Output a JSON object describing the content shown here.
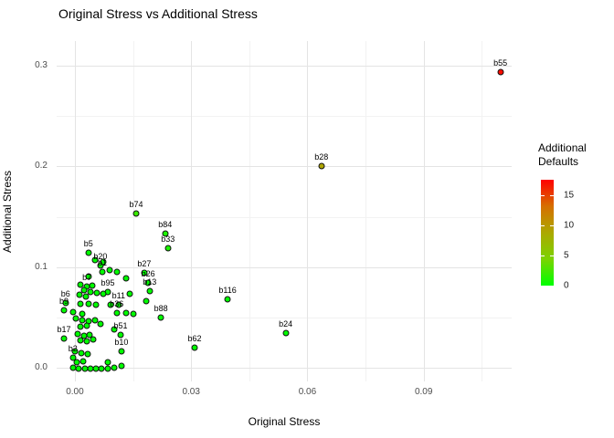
{
  "title": "Original Stress vs Additional Stress",
  "axes": {
    "x": {
      "label": "Original Stress",
      "ticks": [
        "0.00",
        "0.03",
        "0.06",
        "0.09"
      ],
      "tick_values": [
        0.0,
        0.03,
        0.06,
        0.09
      ],
      "minor_values": [
        0.015,
        0.045,
        0.075,
        0.105
      ],
      "range": [
        -0.0047,
        0.1127
      ]
    },
    "y": {
      "label": "Additional Stress",
      "ticks": [
        "0.0",
        "0.1",
        "0.2",
        "0.3"
      ],
      "tick_values": [
        0.0,
        0.1,
        0.2,
        0.3
      ],
      "minor_values": [
        0.05,
        0.15,
        0.25
      ],
      "range": [
        -0.0136,
        0.3247
      ]
    }
  },
  "legend": {
    "title": "Additional\nDefaults",
    "ticks": [
      0,
      5,
      10,
      15
    ],
    "scale_min": 0,
    "scale_max": 17.5,
    "gradient_stops": [
      "#00FF00",
      "#7CD300",
      "#ACA800",
      "#D66F00",
      "#FF0000"
    ]
  },
  "colors": {
    "point_stroke": "#111111",
    "grid_major": "#e4e4e4",
    "grid_minor": "#f2f2f2"
  },
  "chart_data": {
    "type": "scatter",
    "title": "Original Stress vs Additional Stress",
    "xlabel": "Original Stress",
    "ylabel": "Additional Stress",
    "xlim": [
      -0.005,
      0.113
    ],
    "ylim": [
      -0.014,
      0.325
    ],
    "legend_title": "Additional Defaults",
    "color_scale": {
      "low": "#00FF00",
      "high": "#FF0000",
      "domain": [
        0,
        17.5
      ]
    },
    "points": [
      {
        "label": "b55",
        "x": 0.1098,
        "y": 0.2937,
        "defaults": 17
      },
      {
        "label": "b28",
        "x": 0.0636,
        "y": 0.2004,
        "defaults": 9
      },
      {
        "label": "b74",
        "x": 0.0158,
        "y": 0.1532,
        "defaults": 2
      },
      {
        "label": "b84",
        "x": 0.0233,
        "y": 0.1333,
        "defaults": 1
      },
      {
        "label": "b33",
        "x": 0.024,
        "y": 0.1188,
        "defaults": 1
      },
      {
        "label": "b5",
        "x": 0.0035,
        "y": 0.1142,
        "defaults": 0
      },
      {
        "label": "b20",
        "x": 0.0066,
        "y": 0.1015,
        "defaults": 0
      },
      {
        "label": "b1",
        "x": 0.0071,
        "y": 0.0952,
        "defaults": 0
      },
      {
        "label": "b27",
        "x": 0.0179,
        "y": 0.0943,
        "defaults": 0
      },
      {
        "label": "b26",
        "x": 0.0189,
        "y": 0.0843,
        "defaults": 0
      },
      {
        "label": "b13",
        "x": 0.0193,
        "y": 0.0762,
        "defaults": 0
      },
      {
        "label": "b7",
        "x": 0.0031,
        "y": 0.0807,
        "defaults": 0
      },
      {
        "label": "b95",
        "x": 0.0085,
        "y": 0.0753,
        "defaults": 0
      },
      {
        "label": "b11",
        "x": 0.0113,
        "y": 0.0626,
        "defaults": 0
      },
      {
        "label": "b36",
        "x": 0.0108,
        "y": 0.0544,
        "defaults": 0
      },
      {
        "label": "b6",
        "x": -0.0024,
        "y": 0.0644,
        "defaults": 0
      },
      {
        "label": "b9",
        "x": -0.0028,
        "y": 0.0571,
        "defaults": 0
      },
      {
        "label": "b88",
        "x": 0.0222,
        "y": 0.0499,
        "defaults": 0
      },
      {
        "label": "b51",
        "x": 0.0118,
        "y": 0.0326,
        "defaults": 0
      },
      {
        "label": "b17",
        "x": -0.0028,
        "y": 0.029,
        "defaults": 0
      },
      {
        "label": "b10",
        "x": 0.012,
        "y": 0.0163,
        "defaults": 0
      },
      {
        "label": "b2",
        "x": -0.0005,
        "y": 0.01,
        "defaults": 0
      },
      {
        "label": "b62",
        "x": 0.0309,
        "y": 0.0199,
        "defaults": 0
      },
      {
        "label": "b116",
        "x": 0.0394,
        "y": 0.068,
        "defaults": 0
      },
      {
        "label": "b24",
        "x": 0.0544,
        "y": 0.0345,
        "defaults": 0
      },
      {
        "label": "",
        "x": 0.0052,
        "y": 0.107,
        "defaults": 0
      },
      {
        "label": "",
        "x": 0.0073,
        "y": 0.1052,
        "defaults": 0
      },
      {
        "label": "",
        "x": 0.009,
        "y": 0.097,
        "defaults": 0
      },
      {
        "label": "",
        "x": 0.0108,
        "y": 0.0952,
        "defaults": 0
      },
      {
        "label": "",
        "x": 0.0132,
        "y": 0.0888,
        "defaults": 0
      },
      {
        "label": "",
        "x": 0.0035,
        "y": 0.0907,
        "defaults": 0
      },
      {
        "label": "",
        "x": 0.0014,
        "y": 0.0825,
        "defaults": 0
      },
      {
        "label": "",
        "x": 0.0045,
        "y": 0.0816,
        "defaults": 0
      },
      {
        "label": "",
        "x": 0.0024,
        "y": 0.0771,
        "defaults": 0
      },
      {
        "label": "",
        "x": 0.004,
        "y": 0.0753,
        "defaults": 0
      },
      {
        "label": "",
        "x": 0.0057,
        "y": 0.0743,
        "defaults": 0
      },
      {
        "label": "",
        "x": 0.0073,
        "y": 0.0734,
        "defaults": 0
      },
      {
        "label": "",
        "x": 0.0012,
        "y": 0.0725,
        "defaults": 0
      },
      {
        "label": "",
        "x": 0.0028,
        "y": 0.0707,
        "defaults": 0
      },
      {
        "label": "",
        "x": 0.0141,
        "y": 0.0734,
        "defaults": 0
      },
      {
        "label": "",
        "x": 0.0184,
        "y": 0.0662,
        "defaults": 0
      },
      {
        "label": "",
        "x": 0.0014,
        "y": 0.0635,
        "defaults": 0
      },
      {
        "label": "",
        "x": 0.0035,
        "y": 0.0635,
        "defaults": 0
      },
      {
        "label": "",
        "x": 0.0054,
        "y": 0.0626,
        "defaults": 0
      },
      {
        "label": "",
        "x": 0.0092,
        "y": 0.0626,
        "defaults": 0
      },
      {
        "label": "",
        "x": -0.0005,
        "y": 0.0553,
        "defaults": 0
      },
      {
        "label": "",
        "x": 0.0019,
        "y": 0.0535,
        "defaults": 0
      },
      {
        "label": "",
        "x": 0.0132,
        "y": 0.0544,
        "defaults": 0
      },
      {
        "label": "",
        "x": 0.0151,
        "y": 0.0535,
        "defaults": 0
      },
      {
        "label": "",
        "x": 0.0002,
        "y": 0.049,
        "defaults": 0
      },
      {
        "label": "",
        "x": 0.0019,
        "y": 0.0471,
        "defaults": 0
      },
      {
        "label": "",
        "x": 0.0035,
        "y": 0.0462,
        "defaults": 0
      },
      {
        "label": "",
        "x": 0.0052,
        "y": 0.0471,
        "defaults": 0
      },
      {
        "label": "",
        "x": 0.0066,
        "y": 0.0435,
        "defaults": 0
      },
      {
        "label": "",
        "x": 0.0031,
        "y": 0.0417,
        "defaults": 0
      },
      {
        "label": "",
        "x": 0.0014,
        "y": 0.0408,
        "defaults": 0
      },
      {
        "label": "",
        "x": 0.0101,
        "y": 0.0381,
        "defaults": 0
      },
      {
        "label": "",
        "x": 0.0007,
        "y": 0.0335,
        "defaults": 0
      },
      {
        "label": "",
        "x": 0.0024,
        "y": 0.0317,
        "defaults": 0
      },
      {
        "label": "",
        "x": 0.0038,
        "y": 0.0326,
        "defaults": 0
      },
      {
        "label": "",
        "x": 0.0014,
        "y": 0.0272,
        "defaults": 0
      },
      {
        "label": "",
        "x": 0.0031,
        "y": 0.0263,
        "defaults": 0
      },
      {
        "label": "",
        "x": 0.0047,
        "y": 0.0281,
        "defaults": 0
      },
      {
        "label": "",
        "x": 0.0,
        "y": 0.0163,
        "defaults": 0
      },
      {
        "label": "",
        "x": 0.0016,
        "y": 0.0145,
        "defaults": 0
      },
      {
        "label": "",
        "x": 0.0033,
        "y": 0.0136,
        "defaults": 0
      },
      {
        "label": "",
        "x": 0.0005,
        "y": 0.0054,
        "defaults": 0
      },
      {
        "label": "",
        "x": 0.0021,
        "y": 0.0063,
        "defaults": 0
      },
      {
        "label": "",
        "x": -0.0005,
        "y": 0.0,
        "defaults": 0
      },
      {
        "label": "",
        "x": 0.0009,
        "y": -0.001,
        "defaults": 0
      },
      {
        "label": "",
        "x": 0.0026,
        "y": -0.001,
        "defaults": 0
      },
      {
        "label": "",
        "x": 0.004,
        "y": -0.001,
        "defaults": 0
      },
      {
        "label": "",
        "x": 0.0054,
        "y": -0.001,
        "defaults": 0
      },
      {
        "label": "",
        "x": 0.0068,
        "y": -0.001,
        "defaults": 0
      },
      {
        "label": "",
        "x": 0.0085,
        "y": -0.0005,
        "defaults": 0
      },
      {
        "label": "",
        "x": 0.0101,
        "y": 0.0,
        "defaults": 0
      },
      {
        "label": "",
        "x": 0.012,
        "y": 0.0018,
        "defaults": 0
      },
      {
        "label": "",
        "x": 0.0085,
        "y": 0.0054,
        "defaults": 0
      }
    ]
  }
}
